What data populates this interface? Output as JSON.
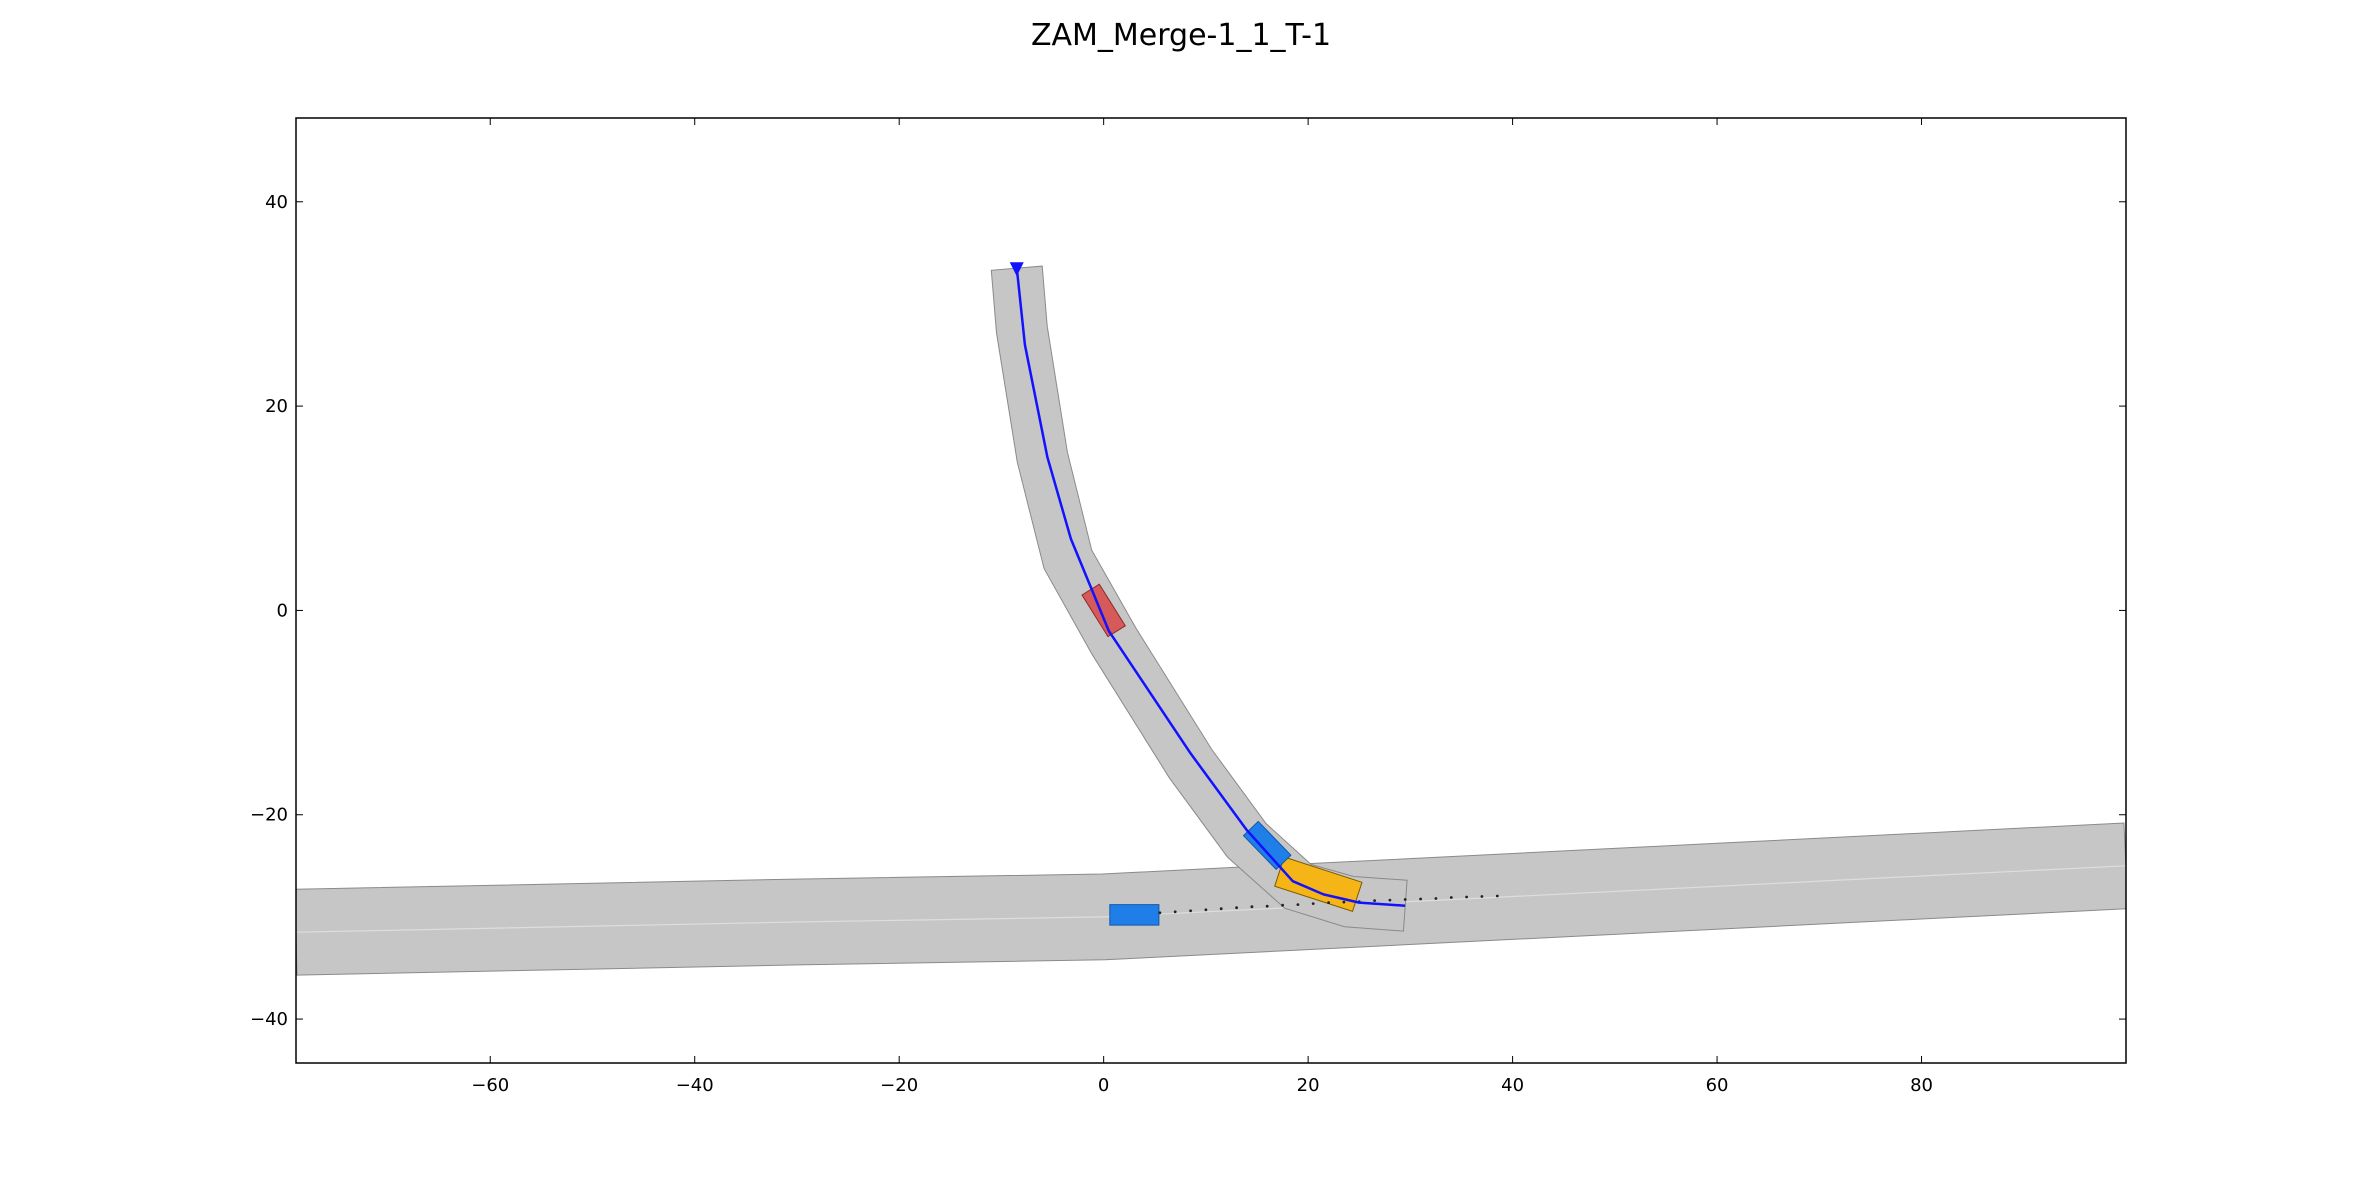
{
  "chart_data": {
    "type": "scatter",
    "title": "ZAM_Merge-1_1_T-1",
    "xlabel": "",
    "ylabel": "",
    "xlim": [
      -79,
      100
    ],
    "ylim": [
      -44.3,
      48.2
    ],
    "xticks": [
      -60,
      -40,
      -20,
      0,
      20,
      40,
      60,
      80
    ],
    "yticks": [
      -40,
      -20,
      0,
      20,
      40
    ],
    "xtick_labels": [
      "−60",
      "−40",
      "−20",
      "0",
      "20",
      "40",
      "60",
      "80"
    ],
    "ytick_labels": [
      "−40",
      "−20",
      "0",
      "20",
      "40"
    ],
    "grid": false,
    "colors": {
      "road_fill": "#c6c6c6",
      "road_edge": "#8a8a8a",
      "center_line": "#dedede",
      "planned_path": "#1212ff",
      "ego_vehicle": "#d65a5a",
      "obstacle_vehicle": "#1f7ee8",
      "goal_region": "#f5b516",
      "prediction_dots": "#222222"
    },
    "main_road": {
      "center": [
        [
          -79,
          -31.5
        ],
        [
          -30,
          -30.5
        ],
        [
          0,
          -30.0
        ],
        [
          20,
          -29.0
        ],
        [
          40,
          -28.0
        ],
        [
          60,
          -27.0
        ],
        [
          80,
          -26.0
        ],
        [
          100,
          -25.0
        ]
      ],
      "width": 4.2
    },
    "ramp": {
      "center": [
        [
          -8.5,
          33.5
        ],
        [
          -8.0,
          27.5
        ],
        [
          -6.0,
          15.0
        ],
        [
          -3.5,
          5.0
        ],
        [
          1.0,
          -3.0
        ],
        [
          8.5,
          -15.0
        ],
        [
          14.0,
          -22.5
        ],
        [
          19.0,
          -27.0
        ],
        [
          24.0,
          -28.5
        ],
        [
          29.5,
          -28.9
        ]
      ],
      "width": 5.0
    },
    "planned_path": [
      [
        -8.5,
        33.5
      ],
      [
        -7.7,
        26.0
      ],
      [
        -5.5,
        15.0
      ],
      [
        -3.2,
        7.0
      ],
      [
        0.5,
        -2.0
      ],
      [
        8.5,
        -14.0
      ],
      [
        14.0,
        -21.5
      ],
      [
        18.5,
        -26.5
      ],
      [
        21.5,
        -27.8
      ],
      [
        25.0,
        -28.6
      ],
      [
        29.5,
        -28.9
      ]
    ],
    "path_start_marker": [
      -8.5,
      33.3
    ],
    "ego_vehicle": {
      "center": [
        0,
        0
      ],
      "length": 4.8,
      "width": 2.0,
      "heading_deg": -58
    },
    "obstacles": [
      {
        "id": "merging-car",
        "center": [
          16.0,
          -23.0
        ],
        "length": 4.6,
        "width": 2.0,
        "heading_deg": -46
      },
      {
        "id": "main-road-car",
        "center": [
          3.0,
          -29.8
        ],
        "length": 4.8,
        "width": 2.0,
        "heading_deg": 0
      }
    ],
    "goal_region": {
      "center": [
        21.0,
        -26.8
      ],
      "length": 8.0,
      "width": 3.0,
      "heading_deg": -18
    },
    "prediction_dots": [
      [
        5.5,
        -29.6
      ],
      [
        7.0,
        -29.5
      ],
      [
        8.5,
        -29.4
      ],
      [
        10.0,
        -29.3
      ],
      [
        11.5,
        -29.2
      ],
      [
        13.0,
        -29.1
      ],
      [
        14.5,
        -29.0
      ],
      [
        16.0,
        -28.95
      ],
      [
        17.5,
        -28.85
      ],
      [
        19.0,
        -28.8
      ],
      [
        20.5,
        -28.7
      ],
      [
        22.0,
        -28.6
      ],
      [
        23.5,
        -28.55
      ],
      [
        25.0,
        -28.5
      ],
      [
        26.5,
        -28.4
      ],
      [
        28.0,
        -28.35
      ],
      [
        29.5,
        -28.3
      ],
      [
        31.0,
        -28.25
      ],
      [
        32.5,
        -28.2
      ],
      [
        34.0,
        -28.1
      ],
      [
        35.5,
        -28.05
      ],
      [
        37.0,
        -28.0
      ],
      [
        38.5,
        -27.95
      ]
    ]
  }
}
